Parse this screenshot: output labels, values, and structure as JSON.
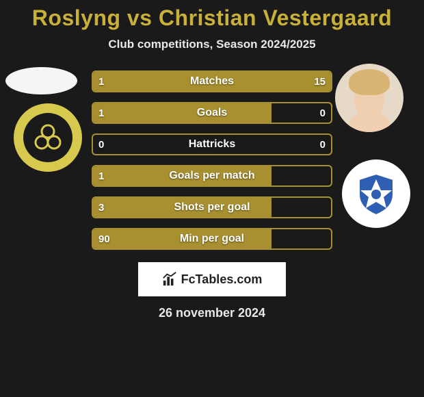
{
  "title": "Roslyng vs Christian Vestergaard",
  "subtitle": "Club competitions, Season 2024/2025",
  "date": "26 november 2024",
  "watermark": "FcTables.com",
  "colors": {
    "accent": "#a89030",
    "title": "#c9b039",
    "bg": "#1a1a1a",
    "text": "#ffffff"
  },
  "bars": [
    {
      "label": "Matches",
      "left_val": "1",
      "right_val": "15",
      "left_pct": 6,
      "right_pct": 94
    },
    {
      "label": "Goals",
      "left_val": "1",
      "right_val": "0",
      "left_pct": 75,
      "right_pct": 0
    },
    {
      "label": "Hattricks",
      "left_val": "0",
      "right_val": "0",
      "left_pct": 0,
      "right_pct": 0
    },
    {
      "label": "Goals per match",
      "left_val": "1",
      "right_val": "",
      "left_pct": 75,
      "right_pct": 0
    },
    {
      "label": "Shots per goal",
      "left_val": "3",
      "right_val": "",
      "left_pct": 75,
      "right_pct": 0
    },
    {
      "label": "Min per goal",
      "left_val": "90",
      "right_val": "",
      "left_pct": 75,
      "right_pct": 0
    }
  ],
  "avatars": {
    "left_club": "AC Horsens",
    "right_club": "Kolding IF"
  }
}
